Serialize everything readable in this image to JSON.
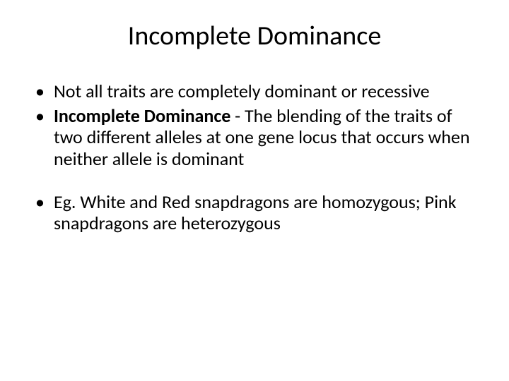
{
  "title": "Incomplete Dominance",
  "bullets": {
    "b1": "Not all traits are completely dominant or recessive",
    "b2_bold": "Incomplete Dominance",
    "b2_rest": " - The blending of the traits of two different alleles at one gene locus that occurs when neither allele is dominant",
    "b3": "Eg. White and Red snapdragons are homozygous; Pink snapdragons are heterozygous"
  },
  "style": {
    "background_color": "#ffffff",
    "text_color": "#000000",
    "title_fontsize": 38,
    "body_fontsize": 26,
    "font_family": "Calibri"
  }
}
